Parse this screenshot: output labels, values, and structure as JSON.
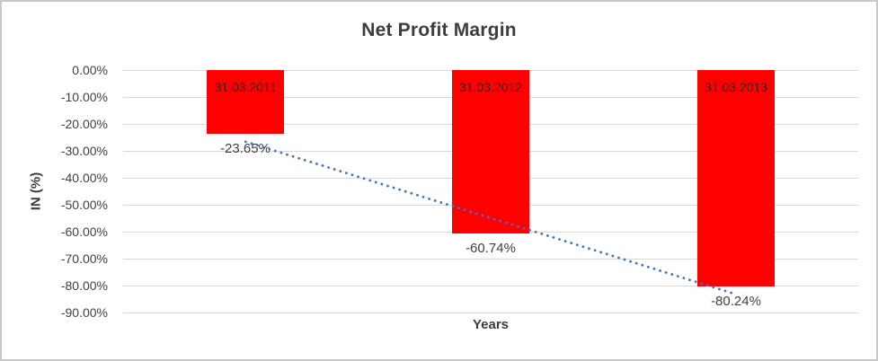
{
  "frame": {
    "border_color": "#c8c8c8",
    "background": "#ffffff"
  },
  "chart_data": {
    "type": "bar",
    "title": "Net Profit Margin",
    "xlabel": "Years",
    "ylabel": "IN (%)",
    "categories": [
      "31.03.2011",
      "31.03.2012",
      "31.03.2013"
    ],
    "values": [
      -23.65,
      -60.74,
      -80.24
    ],
    "value_labels": [
      "-23.65%",
      "-60.74%",
      "-80.24%"
    ],
    "ylim": [
      0,
      -90
    ],
    "ytick_labels": [
      "0.00%",
      "-10.00%",
      "-20.00%",
      "-30.00%",
      "-40.00%",
      "-50.00%",
      "-60.00%",
      "-70.00%",
      "-80.00%",
      "-90.00%"
    ],
    "grid": true,
    "legend": "none",
    "bar_color": "#ff0000",
    "gridline_color": "#d9d9d9",
    "label_color": "#404040",
    "category_label_color": "#262626",
    "title_color": "#3d3d3d",
    "trendline": {
      "style": "dotted",
      "color": "#4472c4",
      "start_value": -26.6,
      "end_value": -83.2
    }
  }
}
